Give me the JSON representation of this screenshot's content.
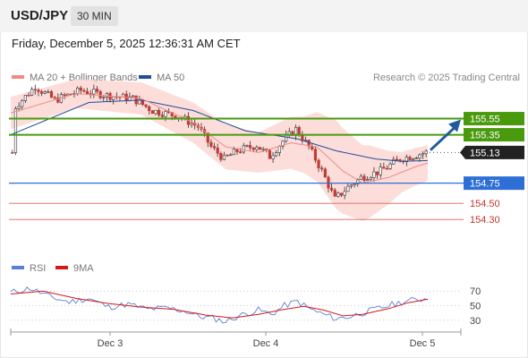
{
  "header": {
    "pair": "USD/JPY",
    "timeframe": "30 MIN"
  },
  "datetime": "Friday, December 5, 2025 12:36:31 AM CET",
  "legend": [
    {
      "label": "MA 20 + Bollinger Bands",
      "color": "#f08a84"
    },
    {
      "label": "MA 50",
      "color": "#1f4e9c"
    }
  ],
  "credit": "Research © 2025 Trading Central",
  "colors": {
    "up": "#ffffff",
    "down": "#c43a32",
    "resistance": "#4a9a0e",
    "support": "#2e6fd6",
    "target": "#d9645c",
    "price": "#222222",
    "rsi": "#5a7fd6",
    "rsi_ma": "#d41818",
    "arrow": "#1f5aa0",
    "band": "#fcd7d3"
  },
  "chart_data": [
    {
      "type": "candlestick",
      "x_ticks": [
        "Dec 3",
        "Dec 4",
        "Dec 5"
      ],
      "ylim": [
        154.18,
        155.9
      ],
      "levels": [
        {
          "value": "155.55",
          "kind": "resistance"
        },
        {
          "value": "155.35",
          "kind": "resistance"
        },
        {
          "value": "155.13",
          "kind": "last-price"
        },
        {
          "value": "154.75",
          "kind": "support"
        },
        {
          "value": "154.50",
          "kind": "target"
        },
        {
          "value": "154.30",
          "kind": "target"
        }
      ],
      "key_points": [
        {
          "x": 2,
          "close": 155.7
        },
        {
          "x": 8,
          "close": 155.95
        },
        {
          "x": 14,
          "close": 155.78
        },
        {
          "x": 22,
          "close": 155.9
        },
        {
          "x": 30,
          "close": 155.84
        },
        {
          "x": 38,
          "close": 155.8
        },
        {
          "x": 44,
          "close": 155.65
        },
        {
          "x": 52,
          "close": 155.58
        },
        {
          "x": 58,
          "close": 155.45
        },
        {
          "x": 62,
          "close": 155.2
        },
        {
          "x": 66,
          "close": 155.05
        },
        {
          "x": 70,
          "close": 155.15
        },
        {
          "x": 76,
          "close": 155.22
        },
        {
          "x": 80,
          "close": 155.08
        },
        {
          "x": 84,
          "close": 155.27
        },
        {
          "x": 88,
          "close": 155.42
        },
        {
          "x": 92,
          "close": 155.2
        },
        {
          "x": 96,
          "close": 154.9
        },
        {
          "x": 100,
          "close": 154.55
        },
        {
          "x": 104,
          "close": 154.7
        },
        {
          "x": 108,
          "close": 154.82
        },
        {
          "x": 114,
          "close": 154.9
        },
        {
          "x": 120,
          "close": 155.05
        },
        {
          "x": 125,
          "close": 155.1
        },
        {
          "x": 128,
          "close": 155.13
        }
      ],
      "ma20": [
        {
          "x": 0,
          "y": 155.62
        },
        {
          "x": 20,
          "y": 155.86
        },
        {
          "x": 40,
          "y": 155.8
        },
        {
          "x": 56,
          "y": 155.5
        },
        {
          "x": 66,
          "y": 155.2
        },
        {
          "x": 76,
          "y": 155.13
        },
        {
          "x": 86,
          "y": 155.25
        },
        {
          "x": 94,
          "y": 155.2
        },
        {
          "x": 102,
          "y": 154.9
        },
        {
          "x": 108,
          "y": 154.75
        },
        {
          "x": 116,
          "y": 154.82
        },
        {
          "x": 124,
          "y": 154.95
        },
        {
          "x": 128,
          "y": 155.0
        }
      ],
      "ma50": [
        {
          "x": 0,
          "y": 155.35
        },
        {
          "x": 12,
          "y": 155.55
        },
        {
          "x": 24,
          "y": 155.75
        },
        {
          "x": 40,
          "y": 155.78
        },
        {
          "x": 56,
          "y": 155.65
        },
        {
          "x": 72,
          "y": 155.4
        },
        {
          "x": 88,
          "y": 155.3
        },
        {
          "x": 100,
          "y": 155.15
        },
        {
          "x": 112,
          "y": 155.05
        },
        {
          "x": 120,
          "y": 155.02
        },
        {
          "x": 128,
          "y": 155.03
        }
      ],
      "bollinger_half_width": [
        {
          "x": 0,
          "w": 0.2
        },
        {
          "x": 20,
          "w": 0.18
        },
        {
          "x": 40,
          "w": 0.2
        },
        {
          "x": 56,
          "w": 0.25
        },
        {
          "x": 66,
          "w": 0.28
        },
        {
          "x": 76,
          "w": 0.25
        },
        {
          "x": 90,
          "w": 0.35
        },
        {
          "x": 100,
          "w": 0.55
        },
        {
          "x": 110,
          "w": 0.45
        },
        {
          "x": 120,
          "w": 0.25
        },
        {
          "x": 128,
          "w": 0.22
        }
      ]
    },
    {
      "type": "line",
      "legend": [
        {
          "label": "RSI",
          "color": "#5a7fd6"
        },
        {
          "label": "9MA",
          "color": "#d41818"
        }
      ],
      "y_ticks": [
        70,
        50,
        30
      ],
      "ylim": [
        15,
        85
      ],
      "rsi_points": [
        {
          "x": 0,
          "y": 68
        },
        {
          "x": 6,
          "y": 74
        },
        {
          "x": 12,
          "y": 62
        },
        {
          "x": 18,
          "y": 55
        },
        {
          "x": 24,
          "y": 60
        },
        {
          "x": 30,
          "y": 48
        },
        {
          "x": 36,
          "y": 52
        },
        {
          "x": 42,
          "y": 45
        },
        {
          "x": 48,
          "y": 47
        },
        {
          "x": 54,
          "y": 42
        },
        {
          "x": 58,
          "y": 35
        },
        {
          "x": 62,
          "y": 33
        },
        {
          "x": 66,
          "y": 28
        },
        {
          "x": 70,
          "y": 36
        },
        {
          "x": 76,
          "y": 44
        },
        {
          "x": 80,
          "y": 38
        },
        {
          "x": 84,
          "y": 50
        },
        {
          "x": 88,
          "y": 56
        },
        {
          "x": 92,
          "y": 45
        },
        {
          "x": 96,
          "y": 38
        },
        {
          "x": 100,
          "y": 32
        },
        {
          "x": 104,
          "y": 35
        },
        {
          "x": 108,
          "y": 40
        },
        {
          "x": 112,
          "y": 45
        },
        {
          "x": 116,
          "y": 50
        },
        {
          "x": 120,
          "y": 55
        },
        {
          "x": 124,
          "y": 58
        },
        {
          "x": 128,
          "y": 60
        }
      ],
      "ma_points": [
        {
          "x": 0,
          "y": 66
        },
        {
          "x": 10,
          "y": 70
        },
        {
          "x": 20,
          "y": 60
        },
        {
          "x": 30,
          "y": 53
        },
        {
          "x": 40,
          "y": 48
        },
        {
          "x": 50,
          "y": 45
        },
        {
          "x": 60,
          "y": 37
        },
        {
          "x": 68,
          "y": 33
        },
        {
          "x": 76,
          "y": 38
        },
        {
          "x": 84,
          "y": 45
        },
        {
          "x": 90,
          "y": 49
        },
        {
          "x": 96,
          "y": 44
        },
        {
          "x": 102,
          "y": 36
        },
        {
          "x": 108,
          "y": 38
        },
        {
          "x": 116,
          "y": 46
        },
        {
          "x": 122,
          "y": 54
        },
        {
          "x": 128,
          "y": 59
        }
      ]
    }
  ]
}
